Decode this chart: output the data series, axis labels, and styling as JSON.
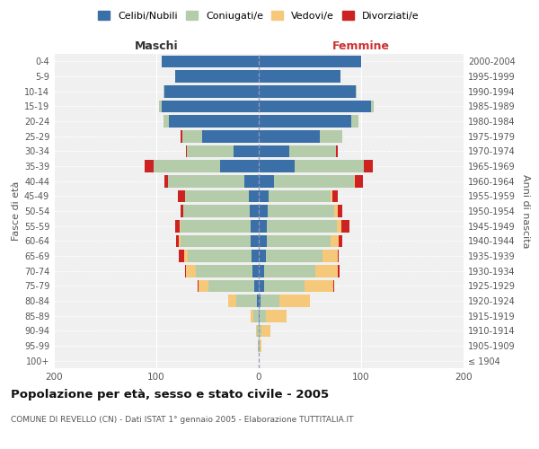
{
  "age_groups": [
    "100+",
    "95-99",
    "90-94",
    "85-89",
    "80-84",
    "75-79",
    "70-74",
    "65-69",
    "60-64",
    "55-59",
    "50-54",
    "45-49",
    "40-44",
    "35-39",
    "30-34",
    "25-29",
    "20-24",
    "15-19",
    "10-14",
    "5-9",
    "0-4"
  ],
  "birth_years": [
    "≤ 1904",
    "1905-1909",
    "1910-1914",
    "1915-1919",
    "1920-1924",
    "1925-1929",
    "1930-1934",
    "1935-1939",
    "1940-1944",
    "1945-1949",
    "1950-1954",
    "1955-1959",
    "1960-1964",
    "1965-1969",
    "1970-1974",
    "1975-1979",
    "1980-1984",
    "1985-1989",
    "1990-1994",
    "1995-1999",
    "2000-2004"
  ],
  "male": {
    "celibi": [
      0,
      0,
      0,
      0,
      2,
      4,
      6,
      7,
      8,
      8,
      9,
      10,
      14,
      38,
      25,
      55,
      88,
      95,
      92,
      82,
      95
    ],
    "coniugati": [
      0,
      1,
      2,
      5,
      20,
      45,
      55,
      62,
      68,
      68,
      65,
      62,
      75,
      65,
      45,
      20,
      5,
      2,
      1,
      0,
      0
    ],
    "vedovi": [
      0,
      0,
      1,
      3,
      8,
      10,
      10,
      4,
      2,
      1,
      0,
      0,
      0,
      0,
      0,
      0,
      0,
      0,
      0,
      0,
      0
    ],
    "divorziati": [
      0,
      0,
      0,
      0,
      0,
      1,
      1,
      5,
      3,
      5,
      2,
      7,
      3,
      8,
      1,
      1,
      0,
      0,
      0,
      0,
      0
    ]
  },
  "female": {
    "nubili": [
      0,
      0,
      0,
      1,
      2,
      5,
      5,
      7,
      8,
      8,
      9,
      10,
      15,
      35,
      30,
      60,
      90,
      110,
      95,
      80,
      100
    ],
    "coniugate": [
      0,
      1,
      3,
      6,
      18,
      40,
      50,
      55,
      62,
      68,
      65,
      60,
      78,
      68,
      45,
      22,
      7,
      2,
      1,
      0,
      0
    ],
    "vedove": [
      0,
      2,
      8,
      20,
      30,
      28,
      22,
      15,
      8,
      5,
      3,
      2,
      1,
      0,
      0,
      0,
      0,
      0,
      0,
      0,
      0
    ],
    "divorziate": [
      0,
      0,
      0,
      0,
      0,
      1,
      2,
      1,
      4,
      8,
      5,
      5,
      8,
      8,
      2,
      0,
      0,
      0,
      0,
      0,
      0
    ]
  },
  "colors": {
    "celibi": "#3a6fa8",
    "coniugati": "#b5ccaa",
    "vedovi": "#f5c87a",
    "divorziati": "#cc2222"
  },
  "xlim": 200,
  "title": "Popolazione per età, sesso e stato civile - 2005",
  "subtitle": "COMUNE DI REVELLO (CN) - Dati ISTAT 1° gennaio 2005 - Elaborazione TUTTITALIA.IT",
  "ylabel_left": "Fasce di età",
  "ylabel_right": "Anni di nascita",
  "xlabel_left": "Maschi",
  "xlabel_right": "Femmine",
  "legend_labels": [
    "Celibi/Nubili",
    "Coniugati/e",
    "Vedovi/e",
    "Divorziati/e"
  ],
  "background_color": "#ffffff",
  "plot_bg_color": "#f0f0f0"
}
